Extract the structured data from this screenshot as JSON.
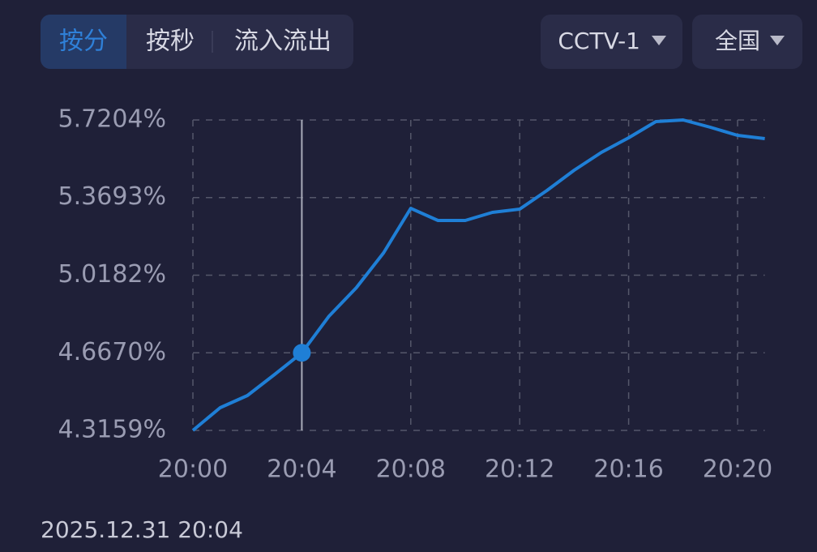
{
  "tabs": [
    "按分",
    "按秒",
    "流入流出"
  ],
  "active_tab": 0,
  "dropdowns": [
    "CCTV-1",
    "全国"
  ],
  "timestamp": "2025.12.31 20:04",
  "chart_data": {
    "type": "line",
    "color": "#1f7fd6",
    "x": [
      "20:00",
      "20:01",
      "20:02",
      "20:03",
      "20:04",
      "20:05",
      "20:06",
      "20:07",
      "20:08",
      "20:09",
      "20:10",
      "20:11",
      "20:12",
      "20:13",
      "20:14",
      "20:15",
      "20:16",
      "20:17",
      "20:18",
      "20:19",
      "20:20",
      "20:21"
    ],
    "values": [
      4.3159,
      4.4186,
      4.4736,
      4.5689,
      4.667,
      4.833,
      4.9613,
      5.119,
      5.3207,
      5.2657,
      5.2657,
      5.3023,
      5.317,
      5.4013,
      5.493,
      5.5737,
      5.6397,
      5.713,
      5.7204,
      5.6874,
      5.6507,
      5.636
    ],
    "ylim": [
      4.3159,
      5.7204
    ],
    "yticks": [
      {
        "value": 4.3159,
        "label": "4.3159%"
      },
      {
        "value": 4.667,
        "label": "4.6670%"
      },
      {
        "value": 5.0182,
        "label": "5.0182%"
      },
      {
        "value": 5.3693,
        "label": "5.3693%"
      },
      {
        "value": 5.7204,
        "label": "5.7204%"
      }
    ],
    "xticks": [
      "20:00",
      "20:04",
      "20:08",
      "20:12",
      "20:16",
      "20:20"
    ],
    "grid": true,
    "selected": "20:04"
  }
}
